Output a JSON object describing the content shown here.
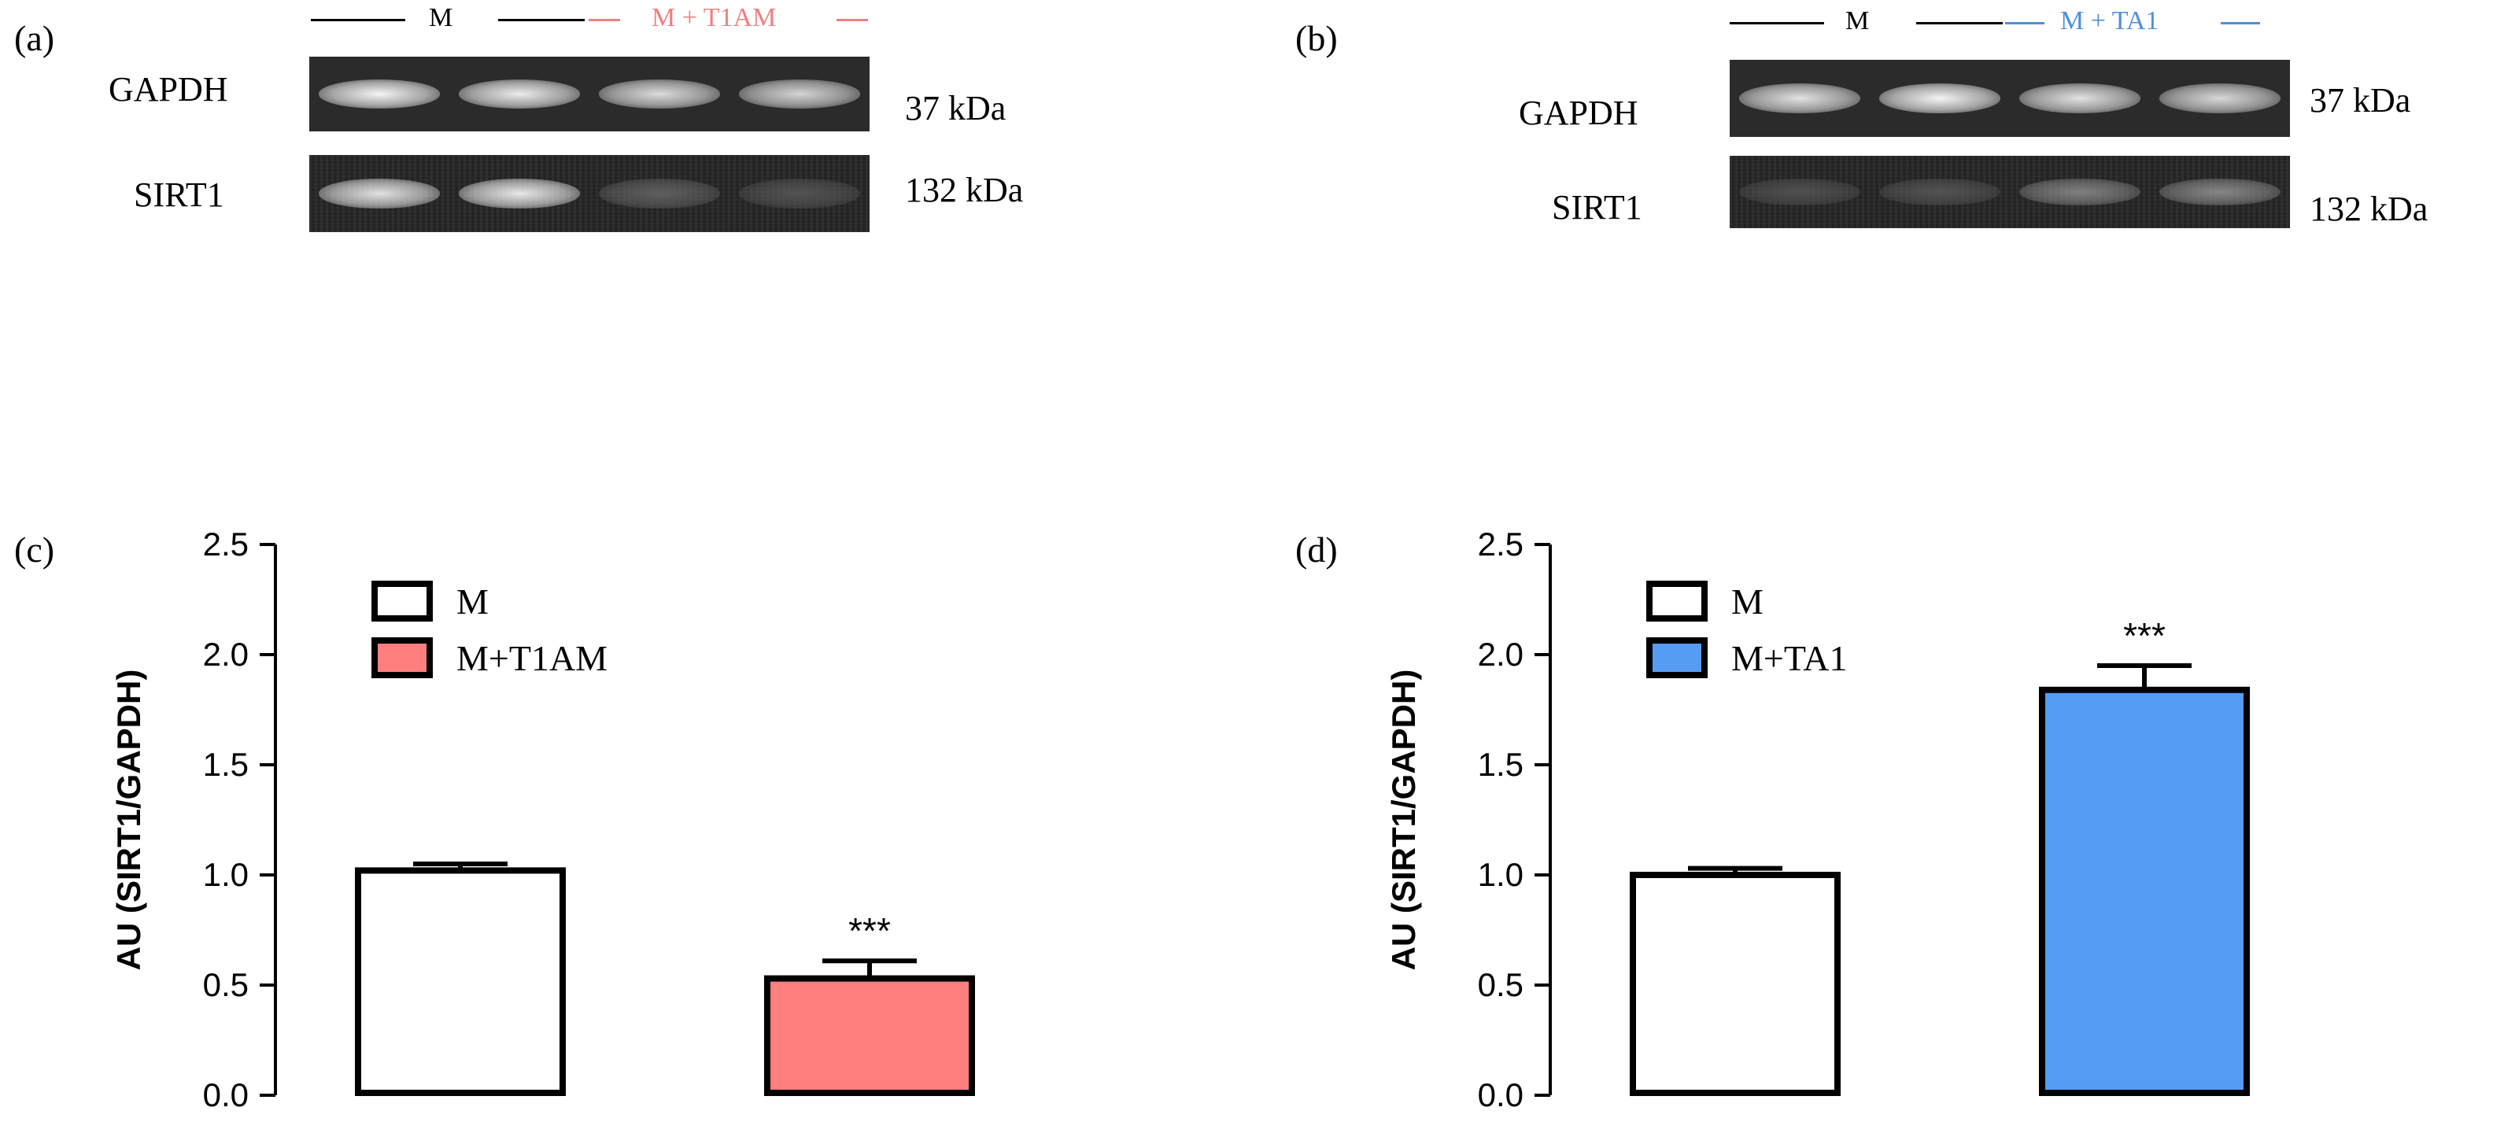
{
  "panels": {
    "a": "(a)",
    "b": "(b)",
    "c": "(c)",
    "d": "(d)"
  },
  "blot_left": {
    "group1": "M",
    "group2": "M + T1AM",
    "group2_color": "#f08080",
    "rows": [
      {
        "protein": "GAPDH",
        "kda": "37 kDa",
        "intensities": [
          0.95,
          0.9,
          0.82,
          0.78
        ]
      },
      {
        "protein": "SIRT1",
        "kda": "132 kDa",
        "intensities": [
          0.85,
          0.88,
          0.18,
          0.12
        ]
      }
    ]
  },
  "blot_right": {
    "group1": "M",
    "group2": "M + TA1",
    "group2_color": "#4f8fdc",
    "rows": [
      {
        "protein": "GAPDH",
        "kda": "37 kDa",
        "intensities": [
          0.85,
          0.95,
          0.85,
          0.8
        ]
      },
      {
        "protein": "SIRT1",
        "kda": "132 kDa",
        "intensities": [
          0.1,
          0.12,
          0.35,
          0.38
        ]
      }
    ]
  },
  "chart_data": [
    {
      "type": "bar",
      "panel": "(c)",
      "categories": [
        "M",
        "M+T1AM"
      ],
      "values": [
        1.02,
        0.53
      ],
      "errors": [
        0.03,
        0.08
      ],
      "colors": [
        "#ffffff",
        "#ff7f7f"
      ],
      "annotations": [
        "",
        "***"
      ],
      "ylabel": "AU (SIRT1/GAPDH)",
      "ylim": [
        0,
        2.5
      ],
      "yticks": [
        "0.0",
        "0.5",
        "1.0",
        "1.5",
        "2.0",
        "2.5"
      ],
      "legend": [
        "M",
        "M+T1AM"
      ],
      "legend_position": "top-left"
    },
    {
      "type": "bar",
      "panel": "(d)",
      "categories": [
        "M",
        "M+TA1"
      ],
      "values": [
        1.0,
        1.84
      ],
      "errors": [
        0.03,
        0.11
      ],
      "colors": [
        "#ffffff",
        "#569cf5"
      ],
      "annotations": [
        "",
        "***"
      ],
      "ylabel": "AU (SIRT1/GAPDH)",
      "ylim": [
        0,
        2.5
      ],
      "yticks": [
        "0.0",
        "0.5",
        "1.0",
        "1.5",
        "2.0",
        "2.5"
      ],
      "legend": [
        "M",
        "M+TA1"
      ],
      "legend_position": "top-left"
    }
  ]
}
